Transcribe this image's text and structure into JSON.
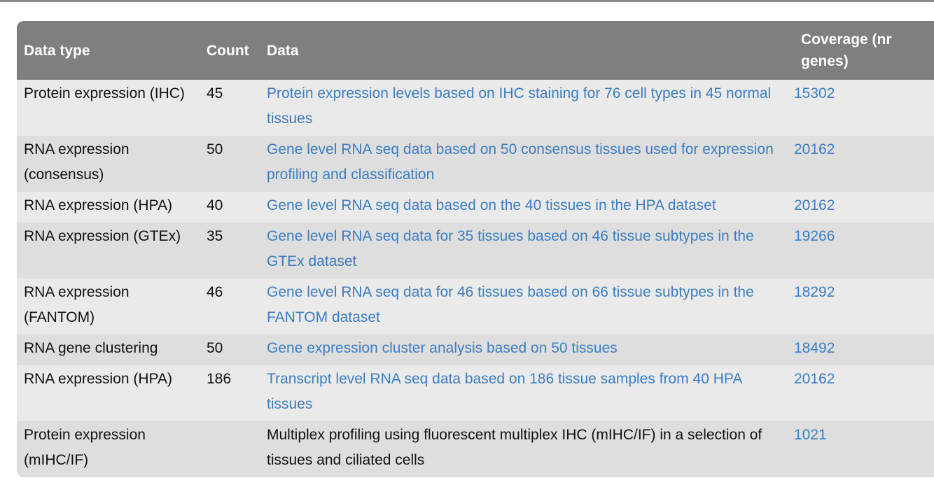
{
  "table": {
    "headers": {
      "data_type": "Data type",
      "count": "Count",
      "data": "Data",
      "coverage": "Coverage (nr genes)"
    },
    "rows": [
      {
        "data_type": "Protein expression (IHC)",
        "count": "45",
        "data": "Protein expression levels based on IHC staining for 76 cell types in 45 normal tissues",
        "data_is_link": true,
        "coverage": "15302"
      },
      {
        "data_type": "RNA expression (consensus)",
        "count": "50",
        "data": "Gene level RNA seq data based on 50 consensus tissues used for expression profiling and classification",
        "data_is_link": true,
        "coverage": "20162"
      },
      {
        "data_type": "RNA expression (HPA)",
        "count": "40",
        "data": "Gene level RNA seq data based on the 40 tissues in the HPA dataset",
        "data_is_link": true,
        "coverage": "20162"
      },
      {
        "data_type": "RNA expression (GTEx)",
        "count": "35",
        "data": "Gene level RNA seq data for 35 tissues based on 46 tissue subtypes in the GTEx dataset",
        "data_is_link": true,
        "coverage": "19266"
      },
      {
        "data_type": "RNA expression (FANTOM)",
        "count": "46",
        "data": "Gene level RNA seq data for 46 tissues based on 66 tissue subtypes in the FANTOM dataset",
        "data_is_link": true,
        "coverage": "18292"
      },
      {
        "data_type": "RNA gene clustering",
        "count": "50",
        "data": "Gene expression cluster analysis based on 50 tissues",
        "data_is_link": true,
        "coverage": "18492"
      },
      {
        "data_type": "RNA expression (HPA)",
        "count": "186",
        "data": "Transcript level RNA seq data based on 186 tissue samples from 40 HPA tissues",
        "data_is_link": true,
        "coverage": "20162"
      },
      {
        "data_type": "Protein expression (mIHC/IF)",
        "count": "",
        "data": "Multiplex profiling using fluorescent multiplex IHC (mIHC/IF) in a selection of tissues and ciliated cells",
        "data_is_link": false,
        "coverage": "1021"
      }
    ]
  },
  "colors": {
    "header_bg": "#7f7f7f",
    "row_odd_bg": "#eaeaea",
    "row_even_bg": "#dedede",
    "link": "#3c7ec2",
    "text": "#111111"
  }
}
